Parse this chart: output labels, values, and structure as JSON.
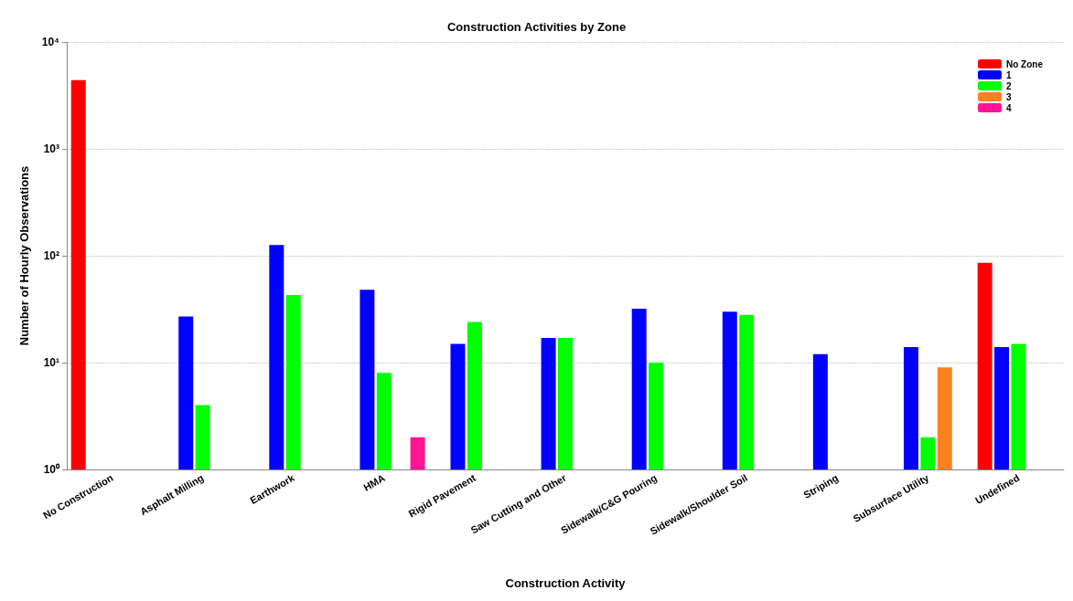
{
  "chart_data": {
    "type": "bar",
    "title": "Construction Activities by Zone",
    "xlabel": "Construction Activity",
    "ylabel": "Number of Hourly Observations",
    "categories": [
      "No Construction",
      "Asphalt Milling",
      "Earthwork",
      "HMA",
      "Rigid Pavement",
      "Saw Cutting and Other",
      "Sidewalk/C&G Pouring",
      "Sidewalk/Shoulder Soil",
      "Striping",
      "Subsurface Utility",
      "Undefined"
    ],
    "series": [
      {
        "name": "No Zone",
        "color": "#ff0000",
        "values": [
          4400,
          null,
          null,
          null,
          null,
          null,
          null,
          null,
          null,
          null,
          86
        ]
      },
      {
        "name": "1",
        "color": "#0000ff",
        "values": [
          null,
          27,
          126,
          48,
          15,
          17,
          32,
          30,
          12,
          14,
          14
        ]
      },
      {
        "name": "2",
        "color": "#00ff00",
        "values": [
          null,
          4,
          43,
          8,
          24,
          17,
          10,
          28,
          null,
          2,
          15
        ]
      },
      {
        "name": "3",
        "color": "#ff8020",
        "values": [
          null,
          null,
          null,
          null,
          null,
          null,
          null,
          null,
          null,
          9,
          null
        ]
      },
      {
        "name": "4",
        "color": "#ff1493",
        "values": [
          null,
          null,
          null,
          2,
          null,
          null,
          null,
          null,
          null,
          null,
          null
        ]
      }
    ],
    "log": true,
    "ylim": [
      1,
      10000
    ],
    "yticks": [
      {
        "value": 1,
        "label": "10⁰"
      },
      {
        "value": 10,
        "label": "10¹"
      },
      {
        "value": 100,
        "label": "10²"
      },
      {
        "value": 1000,
        "label": "10³"
      },
      {
        "value": 10000,
        "label": "10⁴"
      }
    ],
    "grid": "y",
    "legend": "top right"
  }
}
